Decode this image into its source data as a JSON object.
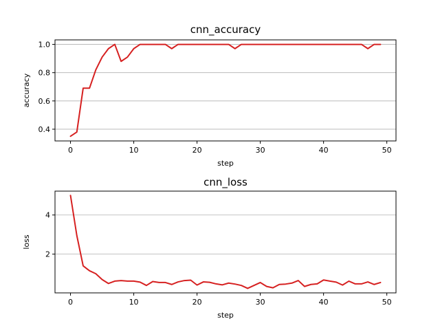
{
  "chart_data": [
    {
      "type": "line",
      "title": "cnn_accuracy",
      "xlabel": "step",
      "ylabel": "accuracy",
      "xlim": [
        -2.45,
        51.45
      ],
      "ylim": [
        0.317,
        1.032
      ],
      "xticks": [
        0,
        10,
        20,
        30,
        40,
        50
      ],
      "yticks": [
        0.4,
        0.6,
        0.8,
        1.0
      ],
      "ytick_labels": [
        "0.4",
        "0.6",
        "0.8",
        "1.0"
      ],
      "grid": "y",
      "legend": null,
      "series": [
        {
          "color": "#d62020",
          "x": [
            0,
            1,
            2,
            3,
            4,
            5,
            6,
            7,
            8,
            9,
            10,
            11,
            12,
            13,
            14,
            15,
            16,
            17,
            18,
            19,
            20,
            21,
            22,
            23,
            24,
            25,
            26,
            27,
            28,
            29,
            30,
            31,
            32,
            33,
            34,
            35,
            36,
            37,
            38,
            39,
            40,
            41,
            42,
            43,
            44,
            45,
            46,
            47,
            48,
            49
          ],
          "y": [
            0.35,
            0.38,
            0.69,
            0.69,
            0.82,
            0.91,
            0.97,
            1.0,
            0.88,
            0.91,
            0.97,
            1.0,
            1.0,
            1.0,
            1.0,
            1.0,
            0.97,
            1.0,
            1.0,
            1.0,
            1.0,
            1.0,
            1.0,
            1.0,
            1.0,
            1.0,
            0.97,
            1.0,
            1.0,
            1.0,
            1.0,
            1.0,
            1.0,
            1.0,
            1.0,
            1.0,
            1.0,
            1.0,
            1.0,
            1.0,
            1.0,
            1.0,
            1.0,
            1.0,
            1.0,
            1.0,
            1.0,
            0.97,
            1.0,
            1.0
          ]
        }
      ]
    },
    {
      "type": "line",
      "title": "cnn_loss",
      "xlabel": "step",
      "ylabel": "loss",
      "xlim": [
        -2.45,
        51.45
      ],
      "ylim": [
        0.02,
        5.22
      ],
      "xticks": [
        0,
        10,
        20,
        30,
        40,
        50
      ],
      "yticks": [
        2,
        4
      ],
      "ytick_labels": [
        "2",
        "4"
      ],
      "grid": "y",
      "legend": null,
      "series": [
        {
          "color": "#d62020",
          "x": [
            0,
            1,
            2,
            3,
            4,
            5,
            6,
            7,
            8,
            9,
            10,
            11,
            12,
            13,
            14,
            15,
            16,
            17,
            18,
            19,
            20,
            21,
            22,
            23,
            24,
            25,
            26,
            27,
            28,
            29,
            30,
            31,
            32,
            33,
            34,
            35,
            36,
            37,
            38,
            39,
            40,
            41,
            42,
            43,
            44,
            45,
            46,
            47,
            48,
            49
          ],
          "y": [
            5.0,
            2.95,
            1.4,
            1.15,
            1.0,
            0.7,
            0.5,
            0.62,
            0.65,
            0.62,
            0.62,
            0.57,
            0.4,
            0.6,
            0.55,
            0.55,
            0.45,
            0.58,
            0.65,
            0.67,
            0.42,
            0.58,
            0.56,
            0.48,
            0.43,
            0.52,
            0.47,
            0.4,
            0.25,
            0.4,
            0.55,
            0.35,
            0.28,
            0.45,
            0.47,
            0.52,
            0.65,
            0.35,
            0.45,
            0.48,
            0.68,
            0.62,
            0.57,
            0.42,
            0.62,
            0.48,
            0.48,
            0.58,
            0.45,
            0.55
          ]
        }
      ]
    }
  ]
}
